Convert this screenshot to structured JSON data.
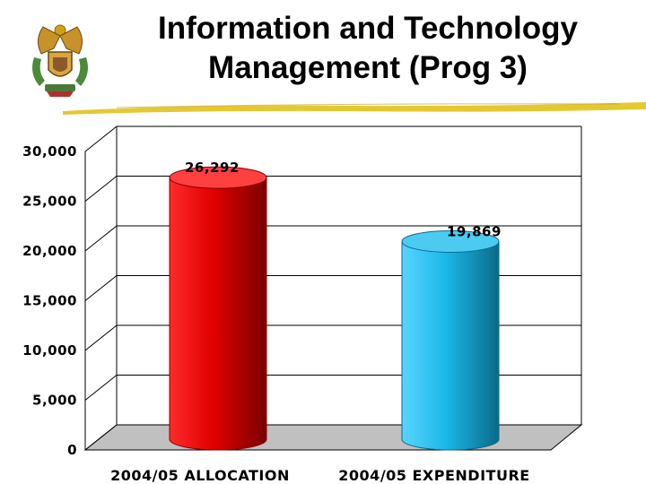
{
  "slide": {
    "title_line1": "Information and Technology",
    "title_line2": "Management (Prog 3)"
  },
  "emblem": {
    "icon": "coat-of-arms-icon"
  },
  "colors": {
    "allocation_bar": "#e00000",
    "expenditure_bar": "#1ab8e8",
    "title_rule": "#e2c21a",
    "floor": "#c0c0c0"
  },
  "chart_data": {
    "type": "bar",
    "style": "3d-cylinder",
    "categories": [
      "2004/05 ALLOCATION",
      "2004/05 EXPENDITURE"
    ],
    "values": [
      26292,
      19869
    ],
    "data_labels": [
      "26,292",
      "19,869"
    ],
    "ylim": [
      0,
      30000
    ],
    "yticks": [
      0,
      5000,
      10000,
      15000,
      20000,
      25000,
      30000
    ],
    "ytick_labels": [
      "0",
      "5,000",
      "10,000",
      "15,000",
      "20,000",
      "25,000",
      "30,000"
    ],
    "grid": true,
    "legend": "none",
    "title": "",
    "xlabel": "",
    "ylabel": ""
  }
}
